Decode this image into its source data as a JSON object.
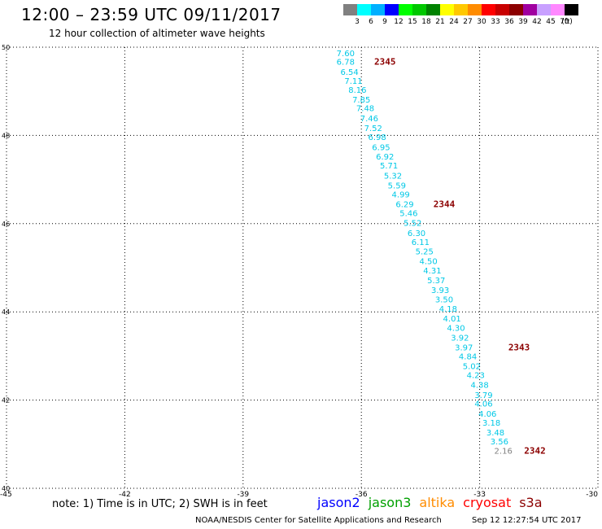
{
  "header": {
    "title": "12:00 – 23:59 UTC 09/11/2017",
    "subtitle": "12 hour collection of altimeter wave heights"
  },
  "colorbar": {
    "unit": "(ft)",
    "swatches": [
      {
        "color": "#808080",
        "label": "3"
      },
      {
        "color": "#00ffff",
        "label": "6"
      },
      {
        "color": "#00b0ff",
        "label": "9"
      },
      {
        "color": "#0000ff",
        "label": "12"
      },
      {
        "color": "#00ff00",
        "label": "15"
      },
      {
        "color": "#00c800",
        "label": "18"
      },
      {
        "color": "#008200",
        "label": "21"
      },
      {
        "color": "#ffff00",
        "label": "24"
      },
      {
        "color": "#ffc800",
        "label": "27"
      },
      {
        "color": "#ff8c00",
        "label": "30"
      },
      {
        "color": "#ff0000",
        "label": "33"
      },
      {
        "color": "#c80000",
        "label": "36"
      },
      {
        "color": "#8c0000",
        "label": "39"
      },
      {
        "color": "#a000a0",
        "label": "42"
      },
      {
        "color": "#c8a0ff",
        "label": "45"
      },
      {
        "color": "#ff88ff",
        "label": "70"
      },
      {
        "color": "#000000",
        "label": ""
      }
    ]
  },
  "map": {
    "lon_ticks": [
      "-45",
      "-42",
      "-39",
      "-36",
      "-33",
      "-30"
    ],
    "lat_ticks": [
      "40",
      "42",
      "44",
      "46",
      "48",
      "50"
    ],
    "lon_range": [
      -45,
      -30
    ],
    "lat_range": [
      40,
      50
    ],
    "label_color": "#00c8e6",
    "low_label_color": "#808080",
    "time_color": "#8c0000",
    "wave_labels": [
      {
        "lon": -36.4,
        "lat": 49.8,
        "value": "7.60"
      },
      {
        "lon": -36.4,
        "lat": 49.6,
        "value": "6.78"
      },
      {
        "lon": -36.3,
        "lat": 49.37,
        "value": "6.54"
      },
      {
        "lon": -36.2,
        "lat": 49.17,
        "value": "7.11"
      },
      {
        "lon": -36.1,
        "lat": 48.97,
        "value": "8.16"
      },
      {
        "lon": -36.0,
        "lat": 48.75,
        "value": "7.85"
      },
      {
        "lon": -35.9,
        "lat": 48.55,
        "value": "7.48"
      },
      {
        "lon": -35.8,
        "lat": 48.32,
        "value": "7.46"
      },
      {
        "lon": -35.7,
        "lat": 48.1,
        "value": "7.52"
      },
      {
        "lon": -35.6,
        "lat": 47.9,
        "value": "6.98"
      },
      {
        "lon": -35.5,
        "lat": 47.67,
        "value": "6.95"
      },
      {
        "lon": -35.4,
        "lat": 47.45,
        "value": "6.92"
      },
      {
        "lon": -35.3,
        "lat": 47.25,
        "value": "5.71"
      },
      {
        "lon": -35.2,
        "lat": 47.02,
        "value": "5.32"
      },
      {
        "lon": -35.1,
        "lat": 46.8,
        "value": "5.59"
      },
      {
        "lon": -35.0,
        "lat": 46.6,
        "value": "4.99"
      },
      {
        "lon": -34.9,
        "lat": 46.37,
        "value": "6.29"
      },
      {
        "lon": -34.8,
        "lat": 46.17,
        "value": "5.46"
      },
      {
        "lon": -34.7,
        "lat": 45.95,
        "value": "5.52"
      },
      {
        "lon": -34.6,
        "lat": 45.72,
        "value": "6.30"
      },
      {
        "lon": -34.5,
        "lat": 45.52,
        "value": "6.11"
      },
      {
        "lon": -34.4,
        "lat": 45.3,
        "value": "5.25"
      },
      {
        "lon": -34.3,
        "lat": 45.08,
        "value": "4.50"
      },
      {
        "lon": -34.2,
        "lat": 44.87,
        "value": "4.31"
      },
      {
        "lon": -34.1,
        "lat": 44.65,
        "value": "5.37"
      },
      {
        "lon": -34.0,
        "lat": 44.43,
        "value": "3.93"
      },
      {
        "lon": -33.9,
        "lat": 44.22,
        "value": "3.50"
      },
      {
        "lon": -33.8,
        "lat": 44.0,
        "value": "4.18"
      },
      {
        "lon": -33.7,
        "lat": 43.78,
        "value": "4.01"
      },
      {
        "lon": -33.6,
        "lat": 43.57,
        "value": "4.30"
      },
      {
        "lon": -33.5,
        "lat": 43.35,
        "value": "3.92"
      },
      {
        "lon": -33.4,
        "lat": 43.13,
        "value": "3.97"
      },
      {
        "lon": -33.3,
        "lat": 42.92,
        "value": "4.84"
      },
      {
        "lon": -33.2,
        "lat": 42.7,
        "value": "5.02"
      },
      {
        "lon": -33.1,
        "lat": 42.5,
        "value": "4.23"
      },
      {
        "lon": -33.0,
        "lat": 42.28,
        "value": "4.38"
      },
      {
        "lon": -32.9,
        "lat": 42.05,
        "value": "3.79"
      },
      {
        "lon": -32.9,
        "lat": 41.85,
        "value": "4.06"
      },
      {
        "lon": -32.8,
        "lat": 41.62,
        "value": "4.06"
      },
      {
        "lon": -32.7,
        "lat": 41.42,
        "value": "3.18"
      },
      {
        "lon": -32.6,
        "lat": 41.2,
        "value": "3.48"
      },
      {
        "lon": -32.5,
        "lat": 41.0,
        "value": "3.56"
      },
      {
        "lon": -32.4,
        "lat": 40.78,
        "value": "2.16"
      }
    ],
    "time_labels": [
      {
        "lon": -35.4,
        "lat": 49.6,
        "value": "2345"
      },
      {
        "lon": -33.9,
        "lat": 46.37,
        "value": "2344"
      },
      {
        "lon": -32.0,
        "lat": 43.13,
        "value": "2343"
      },
      {
        "lon": -31.6,
        "lat": 40.78,
        "value": "2342"
      }
    ]
  },
  "footer": {
    "note": "note: 1) Time is in UTC; 2) SWH is in feet",
    "satellites": [
      {
        "name": "jason2",
        "color": "#0000ff"
      },
      {
        "name": "jason3",
        "color": "#00a000"
      },
      {
        "name": "altika",
        "color": "#ff8c00"
      },
      {
        "name": "cryosat",
        "color": "#ff0000"
      },
      {
        "name": "s3a",
        "color": "#8c0000"
      }
    ],
    "credit": "NOAA/NESDIS Center for Satellite Applications and Research",
    "timestamp": "Sep 12 12:27:54 UTC 2017"
  }
}
